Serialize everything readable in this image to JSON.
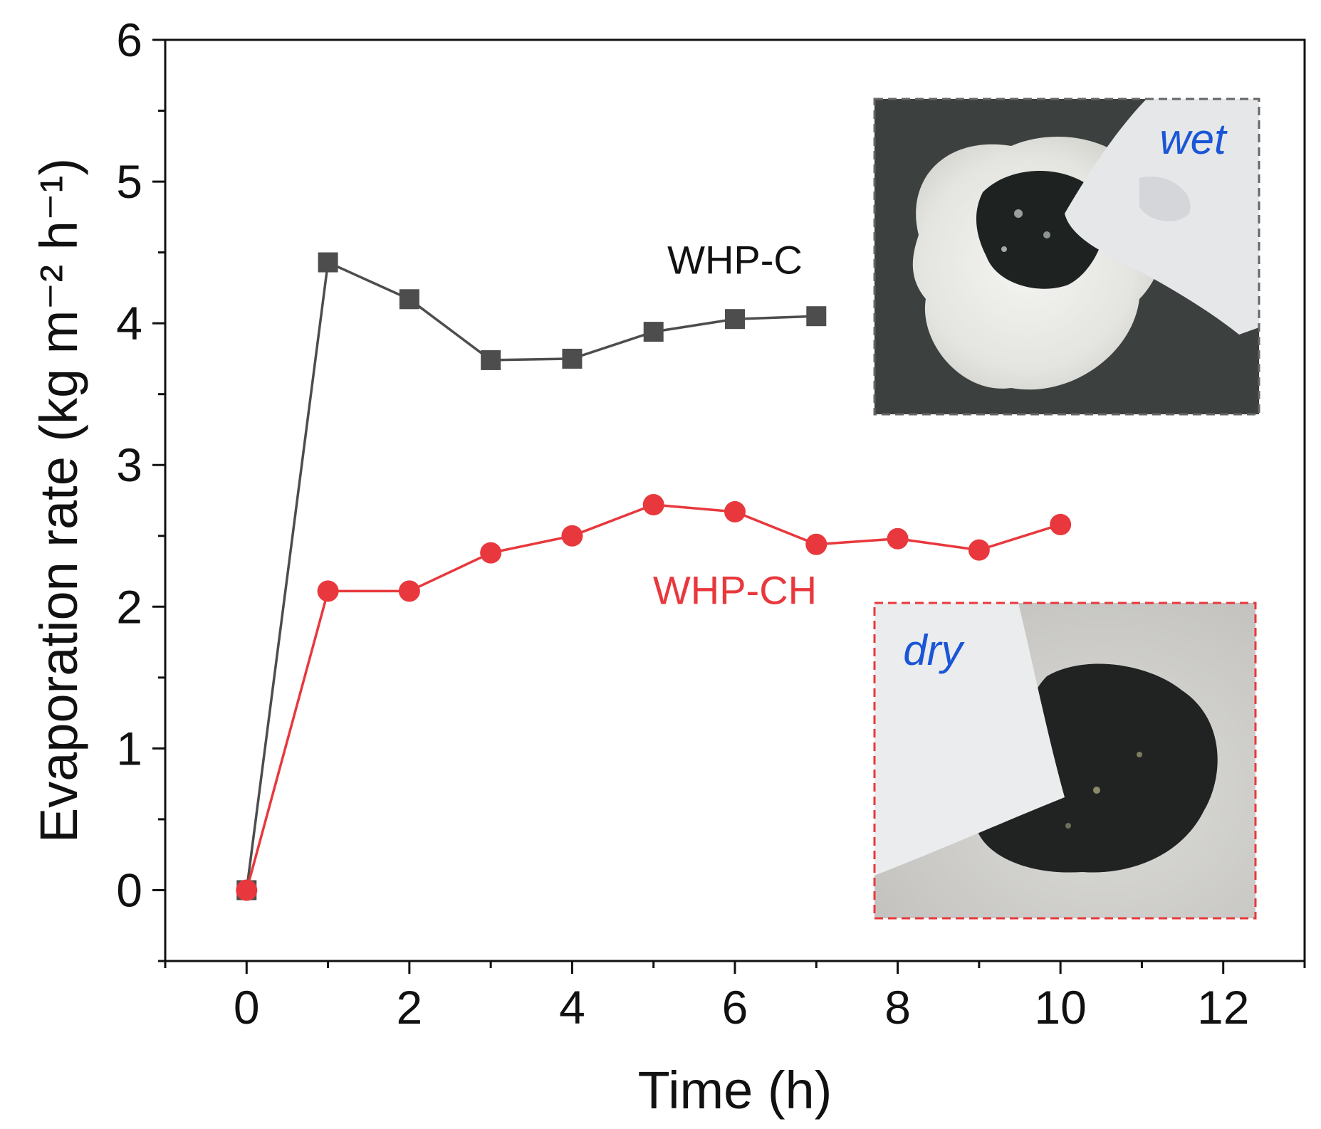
{
  "chart_data": {
    "type": "line",
    "xlabel": "Time (h)",
    "ylabel": "Evaporation rate (kg m⁻² h⁻¹)",
    "xlim": [
      -1,
      13
    ],
    "ylim": [
      -0.5,
      6
    ],
    "xticks": [
      0,
      2,
      4,
      6,
      8,
      10,
      12
    ],
    "yticks": [
      0,
      1,
      2,
      3,
      4,
      5,
      6
    ],
    "grid": false,
    "legend": "none",
    "series": [
      {
        "name": "WHP-C",
        "color": "#4d4d4d",
        "marker": "square",
        "x": [
          0,
          1,
          2,
          3,
          4,
          5,
          6,
          7
        ],
        "y": [
          0,
          4.43,
          4.17,
          3.74,
          3.75,
          3.94,
          4.03,
          4.05
        ]
      },
      {
        "name": "WHP-CH",
        "color": "#e8383d",
        "marker": "circle",
        "x": [
          0,
          1,
          2,
          3,
          4,
          5,
          6,
          7,
          8,
          9,
          10
        ],
        "y": [
          0,
          2.11,
          2.11,
          2.38,
          2.5,
          2.72,
          2.67,
          2.44,
          2.48,
          2.4,
          2.58
        ]
      }
    ],
    "insets": [
      {
        "label": "wet",
        "border_color": "#666666",
        "position": "top-right"
      },
      {
        "label": "dry",
        "border_color": "#e8383d",
        "position": "bottom-right"
      }
    ]
  }
}
